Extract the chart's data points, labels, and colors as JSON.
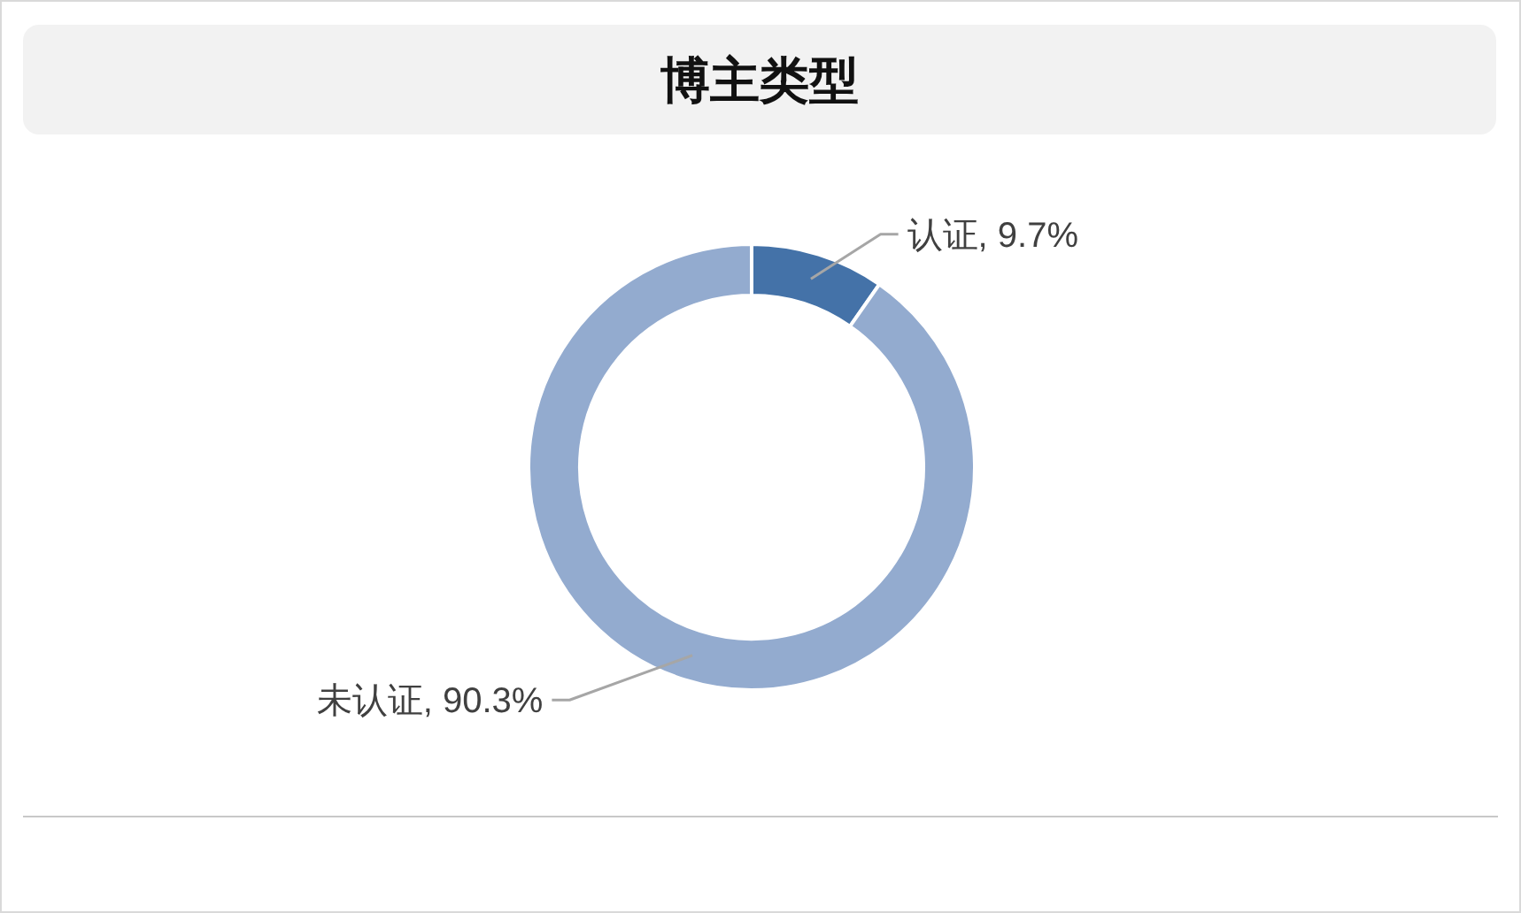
{
  "chart_data": {
    "type": "donut",
    "title": "博主类型",
    "categories": [
      "认证",
      "未认证"
    ],
    "values": [
      9.7,
      90.3
    ],
    "colors": [
      "#4472a8",
      "#93abcf"
    ],
    "value_labels": [
      "9.7%",
      "90.3%"
    ]
  }
}
